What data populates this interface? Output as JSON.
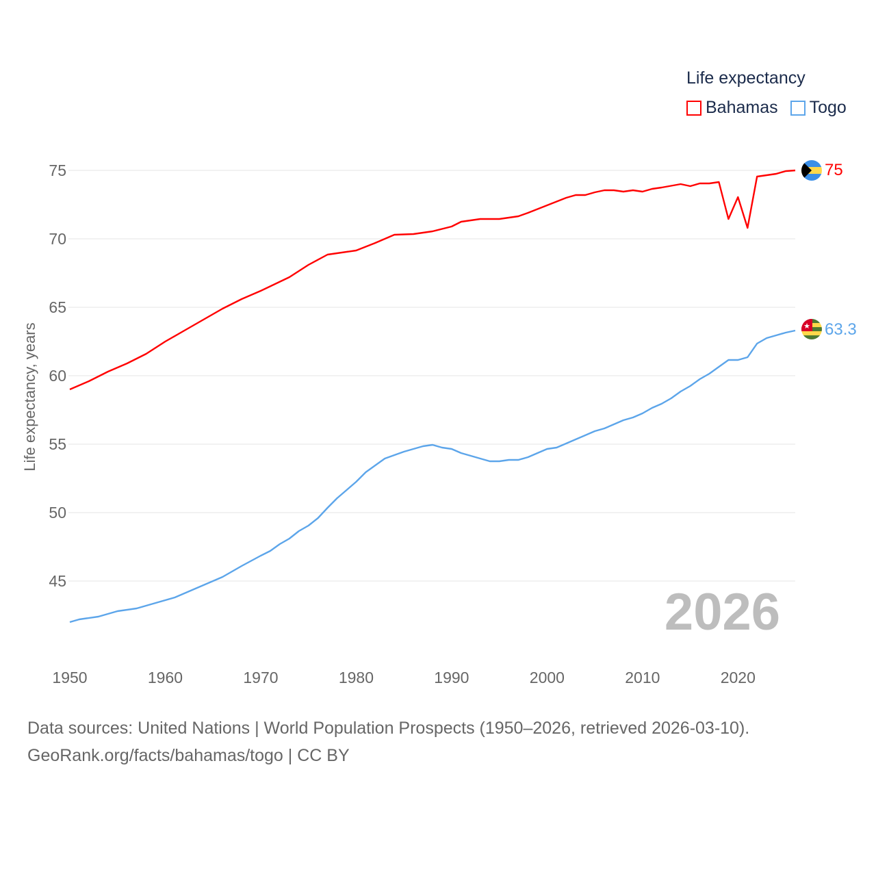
{
  "legend": {
    "title": "Life expectancy",
    "items": [
      {
        "label": "Bahamas",
        "color": "#ff0000"
      },
      {
        "label": "Togo",
        "color": "#5ca5ea"
      }
    ]
  },
  "footer": {
    "line1": "Data sources: United Nations | World Population Prospects (1950–2026, retrieved 2026-03-10).",
    "line2": "GeoRank.org/facts/bahamas/togo | CC BY"
  },
  "chart_data": {
    "type": "line",
    "title": "Life expectancy",
    "xlabel": "",
    "ylabel": "Life expectancy, years",
    "xlim": [
      1950,
      2026
    ],
    "ylim": [
      40,
      77
    ],
    "grid": true,
    "legend_position": "top-right",
    "x_ticks": [
      "1950",
      "1960",
      "1970",
      "1980",
      "1990",
      "2000",
      "2010",
      "2020"
    ],
    "y_ticks": [
      "45",
      "50",
      "55",
      "60",
      "65",
      "70",
      "75"
    ],
    "year_watermark": "2026",
    "series": [
      {
        "name": "Bahamas",
        "color": "#ff0000",
        "end_label": "75",
        "x": [
          1950,
          1952,
          1954,
          1956,
          1958,
          1960,
          1962,
          1964,
          1966,
          1968,
          1970,
          1973,
          1975,
          1977,
          1980,
          1982,
          1984,
          1986,
          1988,
          1990,
          1991,
          1993,
          1995,
          1997,
          1998,
          2000,
          2002,
          2003,
          2004,
          2005,
          2006,
          2007,
          2008,
          2009,
          2010,
          2011,
          2012,
          2014,
          2015,
          2016,
          2017,
          2018,
          2019,
          2020,
          2021,
          2022,
          2023,
          2024,
          2025,
          2026
        ],
        "values": [
          59.0,
          59.6,
          60.3,
          60.9,
          61.6,
          62.5,
          63.3,
          64.1,
          64.9,
          65.6,
          66.2,
          67.2,
          68.1,
          68.85,
          69.15,
          69.7,
          70.3,
          70.35,
          70.55,
          70.9,
          71.25,
          71.45,
          71.45,
          71.65,
          71.9,
          72.45,
          73.0,
          73.2,
          73.2,
          73.4,
          73.55,
          73.55,
          73.45,
          73.55,
          73.45,
          73.65,
          73.75,
          74.0,
          73.85,
          74.05,
          74.05,
          74.15,
          71.45,
          73.05,
          70.8,
          74.55,
          74.65,
          74.75,
          74.95,
          75.0
        ]
      },
      {
        "name": "Togo",
        "color": "#5ca5ea",
        "end_label": "63.3",
        "x": [
          1950,
          1951,
          1953,
          1955,
          1957,
          1959,
          1961,
          1963,
          1966,
          1968,
          1970,
          1971,
          1972,
          1973,
          1974,
          1975,
          1976,
          1977,
          1978,
          1979,
          1980,
          1981,
          1982,
          1983,
          1984,
          1985,
          1986,
          1987,
          1988,
          1989,
          1990,
          1991,
          1992,
          1993,
          1994,
          1995,
          1996,
          1997,
          1998,
          1999,
          2000,
          2001,
          2002,
          2003,
          2004,
          2005,
          2006,
          2007,
          2008,
          2009,
          2010,
          2011,
          2012,
          2013,
          2014,
          2015,
          2016,
          2017,
          2018,
          2019,
          2020,
          2021,
          2022,
          2023,
          2024,
          2025,
          2026
        ],
        "values": [
          42.0,
          42.2,
          42.4,
          42.8,
          43.0,
          43.4,
          43.8,
          44.4,
          45.3,
          46.1,
          46.85,
          47.2,
          47.7,
          48.1,
          48.65,
          49.05,
          49.6,
          50.35,
          51.05,
          51.65,
          52.25,
          52.95,
          53.45,
          53.95,
          54.2,
          54.45,
          54.65,
          54.85,
          54.95,
          54.75,
          54.65,
          54.35,
          54.15,
          53.95,
          53.75,
          53.75,
          53.85,
          53.85,
          54.05,
          54.35,
          54.65,
          54.75,
          55.05,
          55.35,
          55.65,
          55.95,
          56.15,
          56.45,
          56.75,
          56.95,
          57.25,
          57.65,
          57.95,
          58.35,
          58.85,
          59.25,
          59.75,
          60.15,
          60.65,
          61.15,
          61.15,
          61.35,
          62.35,
          62.75,
          62.95,
          63.15,
          63.3
        ]
      }
    ]
  }
}
